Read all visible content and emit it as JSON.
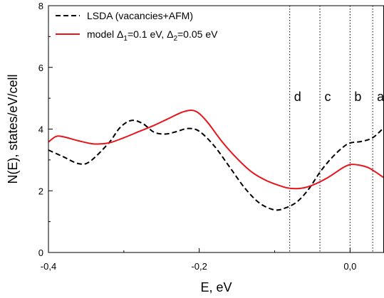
{
  "chart_data": {
    "type": "line",
    "xlabel": "E, eV",
    "ylabel": "N(E),  states/eV/cell",
    "xlim": [
      -0.4,
      0.045
    ],
    "ylim": [
      0,
      8
    ],
    "x_ticks": [
      -0.4,
      -0.2,
      0.0
    ],
    "x_tick_labels": [
      "-0,4",
      "-0,2",
      "0,0"
    ],
    "y_ticks": [
      0,
      2,
      4,
      6,
      8
    ],
    "y_tick_labels": [
      "0",
      "2",
      "4",
      "6",
      "8"
    ],
    "legend": {
      "placement": "top-left",
      "entries": [
        {
          "label": "LSDA (vacancies+AFM)"
        },
        {
          "label": "model Δ",
          "sub1": "1",
          "mid": "=0.1 eV, Δ",
          "sub2": "2",
          "end": "=0.05 eV"
        }
      ]
    },
    "series": [
      {
        "name": "LSDA (vacancies+AFM)",
        "color": "#000000",
        "style": "dashed",
        "points": [
          [
            -0.4,
            3.32
          ],
          [
            -0.38,
            3.1
          ],
          [
            -0.36,
            2.88
          ],
          [
            -0.345,
            2.95
          ],
          [
            -0.32,
            3.55
          ],
          [
            -0.305,
            4.05
          ],
          [
            -0.29,
            4.28
          ],
          [
            -0.275,
            4.18
          ],
          [
            -0.26,
            3.9
          ],
          [
            -0.245,
            3.84
          ],
          [
            -0.23,
            3.92
          ],
          [
            -0.215,
            4.02
          ],
          [
            -0.2,
            3.93
          ],
          [
            -0.18,
            3.45
          ],
          [
            -0.16,
            2.78
          ],
          [
            -0.14,
            2.1
          ],
          [
            -0.12,
            1.6
          ],
          [
            -0.1,
            1.38
          ],
          [
            -0.085,
            1.45
          ],
          [
            -0.07,
            1.65
          ],
          [
            -0.055,
            2.05
          ],
          [
            -0.04,
            2.6
          ],
          [
            -0.025,
            3.05
          ],
          [
            -0.01,
            3.4
          ],
          [
            0.0,
            3.55
          ],
          [
            0.015,
            3.6
          ],
          [
            0.03,
            3.72
          ],
          [
            0.045,
            4.05
          ]
        ]
      },
      {
        "name": "model Δ1=0.1 eV, Δ2=0.05 eV",
        "color": "#e8141c",
        "style": "solid",
        "points": [
          [
            -0.4,
            3.58
          ],
          [
            -0.39,
            3.76
          ],
          [
            -0.38,
            3.75
          ],
          [
            -0.36,
            3.62
          ],
          [
            -0.34,
            3.52
          ],
          [
            -0.32,
            3.55
          ],
          [
            -0.3,
            3.72
          ],
          [
            -0.28,
            3.92
          ],
          [
            -0.26,
            4.12
          ],
          [
            -0.24,
            4.35
          ],
          [
            -0.22,
            4.57
          ],
          [
            -0.205,
            4.58
          ],
          [
            -0.19,
            4.25
          ],
          [
            -0.17,
            3.6
          ],
          [
            -0.15,
            3.05
          ],
          [
            -0.13,
            2.6
          ],
          [
            -0.11,
            2.32
          ],
          [
            -0.09,
            2.14
          ],
          [
            -0.08,
            2.08
          ],
          [
            -0.065,
            2.08
          ],
          [
            -0.05,
            2.18
          ],
          [
            -0.03,
            2.42
          ],
          [
            -0.01,
            2.74
          ],
          [
            0.0,
            2.85
          ],
          [
            0.01,
            2.84
          ],
          [
            0.025,
            2.74
          ],
          [
            0.045,
            2.42
          ]
        ]
      }
    ],
    "vertical_lines": [
      {
        "x": -0.08,
        "label": "d"
      },
      {
        "x": -0.04,
        "label": "c"
      },
      {
        "x": 0.0,
        "label": "b"
      },
      {
        "x": 0.03,
        "label": "a"
      }
    ]
  }
}
